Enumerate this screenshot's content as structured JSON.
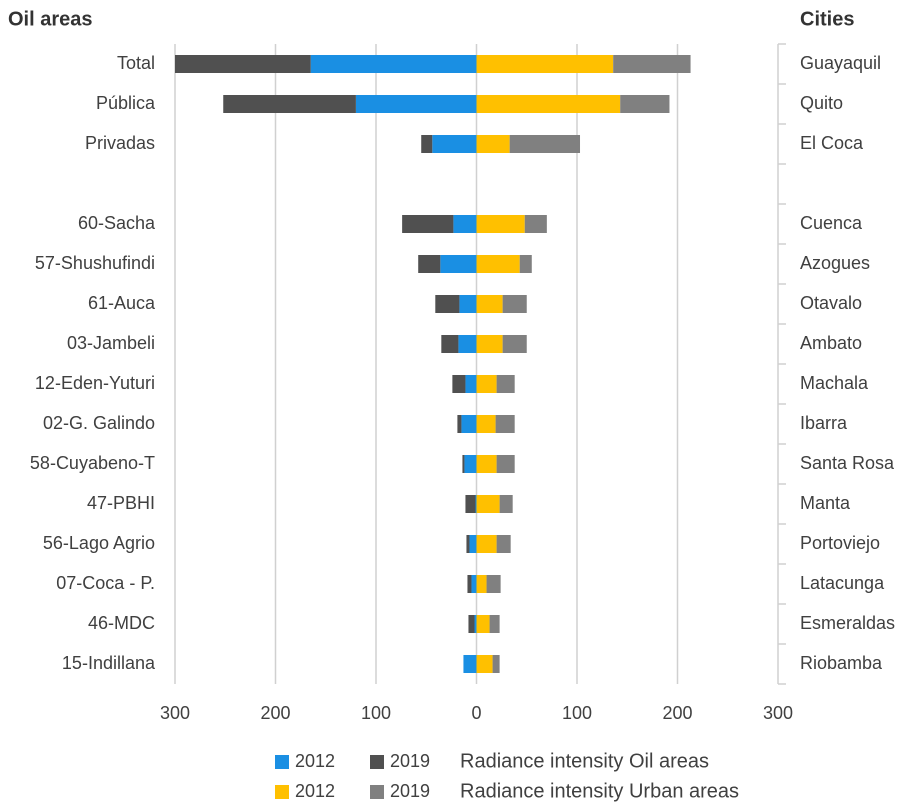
{
  "chart_data": {
    "type": "butterfly_bar",
    "xlim": [
      -300,
      300
    ],
    "xticks": [
      {
        "value": -300,
        "label": "300"
      },
      {
        "value": -200,
        "label": "200"
      },
      {
        "value": -100,
        "label": "100"
      },
      0,
      100,
      200,
      300
    ],
    "grid": true,
    "left": {
      "header": "Oil areas",
      "legend": "Radiance intensity Oil areas",
      "categories": [
        "Total",
        "Pública",
        "Privadas",
        null,
        "60-Sacha",
        "57-Shushufindi",
        "61-Auca",
        "03-Jambeli",
        "12-Eden-Yuturi",
        "02-G. Galindo",
        "58-Cuyabeno-T",
        "47-PBHI",
        "56-Lago Agrio",
        "07-Coca - P.",
        "46-MDC",
        "15-Indillana"
      ],
      "series": [
        {
          "name": "2012",
          "color": "#1a8fe3",
          "values": [
            165,
            120,
            44,
            null,
            23,
            36,
            17,
            18,
            11,
            15,
            12,
            1,
            7,
            5,
            2,
            13
          ]
        },
        {
          "name": "2019",
          "color": "#505050",
          "values": [
            135,
            132,
            11,
            null,
            51,
            22,
            24,
            17,
            13,
            4,
            2,
            10,
            3,
            4,
            6,
            0
          ]
        }
      ]
    },
    "right": {
      "header": "Cities",
      "legend": "Radiance intensity Urban areas",
      "categories": [
        "Guayaquil",
        "Quito",
        "El Coca",
        null,
        "Cuenca",
        "Azogues",
        "Otavalo",
        "Ambato",
        "Machala",
        "Ibarra",
        "Santa Rosa",
        "Manta",
        "Portoviejo",
        "Latacunga",
        "Esmeraldas",
        "Riobamba"
      ],
      "series": [
        {
          "name": "2012",
          "color": "#ffc000",
          "values": [
            136,
            143,
            33,
            null,
            48,
            43,
            26,
            26,
            20,
            19,
            20,
            23,
            20,
            10,
            13,
            16
          ]
        },
        {
          "name": "2019",
          "color": "#808080",
          "values": [
            77,
            49,
            70,
            null,
            22,
            12,
            24,
            24,
            18,
            19,
            18,
            13,
            14,
            14,
            10,
            7
          ]
        }
      ]
    }
  }
}
